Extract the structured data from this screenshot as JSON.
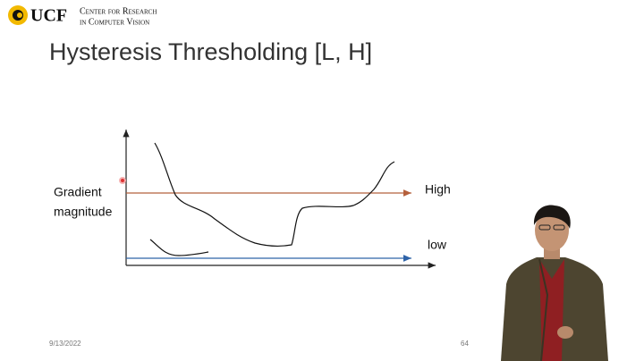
{
  "header": {
    "logo": "UCF",
    "org_line1": "Center for Research",
    "org_line2": "in Computer Vision"
  },
  "slide": {
    "title": "Hysteresis Thresholding  [L, H]",
    "diagram": {
      "y_label_line1": "Gradient",
      "y_label_line2": "magnitude",
      "high_label": "High",
      "low_label": "low"
    },
    "footer": {
      "date": "9/13/2022",
      "page": "64"
    }
  }
}
